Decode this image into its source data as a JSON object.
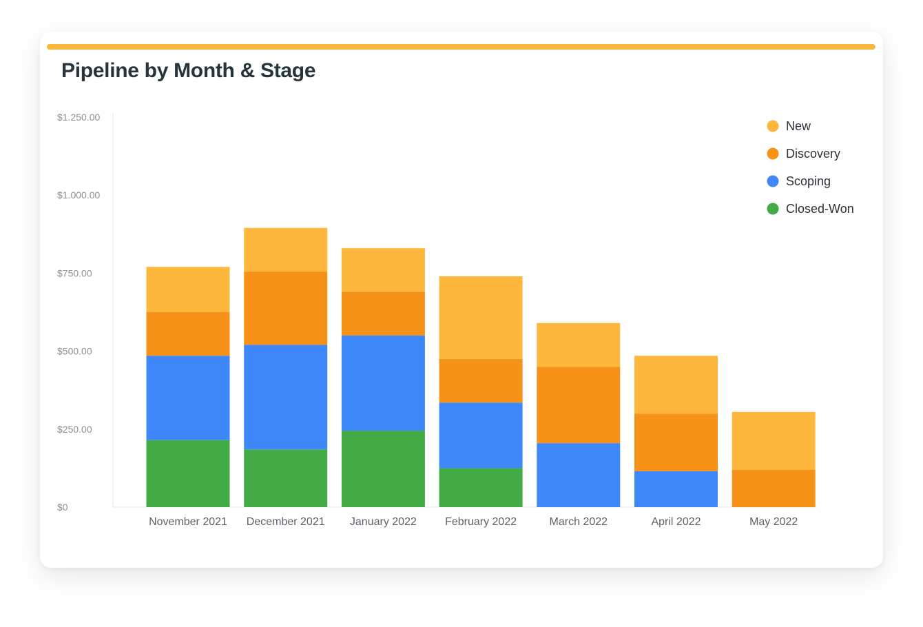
{
  "card": {
    "title": "Pipeline by Month & Stage",
    "accent_color": "#F9B73B"
  },
  "chart_data": {
    "type": "bar",
    "stacked": true,
    "title": "Pipeline by Month & Stage",
    "xlabel": "",
    "ylabel": "",
    "categories": [
      "November 2021",
      "December 2021",
      "January 2022",
      "February 2022",
      "March 2022",
      "April 2022",
      "May 2022"
    ],
    "series": [
      {
        "name": "Closed-Won",
        "color": "#42AB46",
        "values": [
          215,
          185,
          245,
          125,
          0,
          0,
          0
        ]
      },
      {
        "name": "Scoping",
        "color": "#3E88FC",
        "values": [
          270,
          335,
          305,
          210,
          205,
          115,
          0
        ]
      },
      {
        "name": "Discovery",
        "color": "#F79218",
        "values": [
          140,
          235,
          140,
          140,
          245,
          185,
          120
        ]
      },
      {
        "name": "New",
        "color": "#FDB73C",
        "values": [
          145,
          140,
          140,
          265,
          140,
          185,
          185
        ]
      }
    ],
    "ylim": [
      0,
      1250
    ],
    "yticks": [
      0,
      250,
      500,
      750,
      1000,
      1250
    ],
    "ytick_labels": [
      "$0",
      "$250.00",
      "$500.00",
      "$750.00",
      "$1.000.00",
      "$1.250.00"
    ],
    "legend_order": [
      "New",
      "Discovery",
      "Scoping",
      "Closed-Won"
    ],
    "legend_position": "top-right",
    "grid": false
  }
}
